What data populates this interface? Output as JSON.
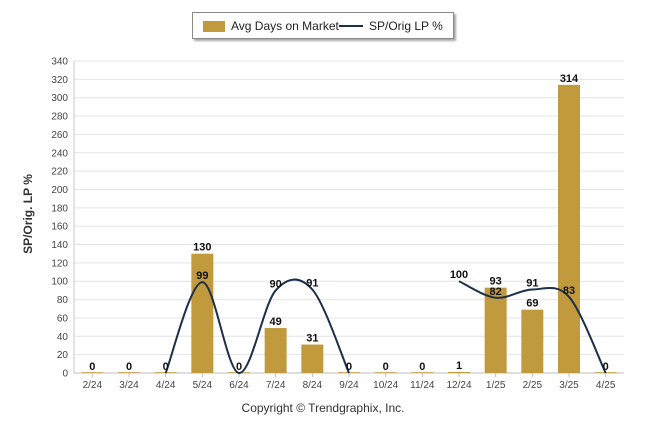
{
  "chart_data": {
    "type": "bar",
    "categories": [
      "2/24",
      "3/24",
      "4/24",
      "5/24",
      "6/24",
      "7/24",
      "8/24",
      "9/24",
      "10/24",
      "11/24",
      "12/24",
      "1/25",
      "2/25",
      "3/25",
      "4/25"
    ],
    "series": [
      {
        "name": "Avg Days on Market",
        "type": "bar",
        "color": "#c19a3e",
        "values": [
          0,
          0,
          0,
          130,
          0,
          49,
          31,
          0,
          0,
          0,
          1,
          93,
          69,
          314,
          0
        ]
      },
      {
        "name": "SP/Orig LP %",
        "type": "line",
        "color": "#1b2f4a",
        "values": [
          null,
          null,
          0,
          99,
          0,
          90,
          91,
          0,
          null,
          null,
          100,
          82,
          91,
          83,
          0
        ]
      }
    ],
    "ylabel": "SP/Orig. LP %",
    "ylim": [
      0,
      340
    ],
    "yticks": [
      0,
      20,
      40,
      60,
      80,
      100,
      120,
      140,
      160,
      180,
      200,
      220,
      240,
      260,
      280,
      300,
      320,
      340
    ],
    "grid": true,
    "legend": "top-center"
  },
  "legend": {
    "bar_label": "Avg Days on Market",
    "line_label": "SP/Orig LP %"
  },
  "axis": {
    "y_title": "SP/Orig. LP %"
  },
  "footer": {
    "copyright": "Copyright © Trendgraphix, Inc."
  }
}
